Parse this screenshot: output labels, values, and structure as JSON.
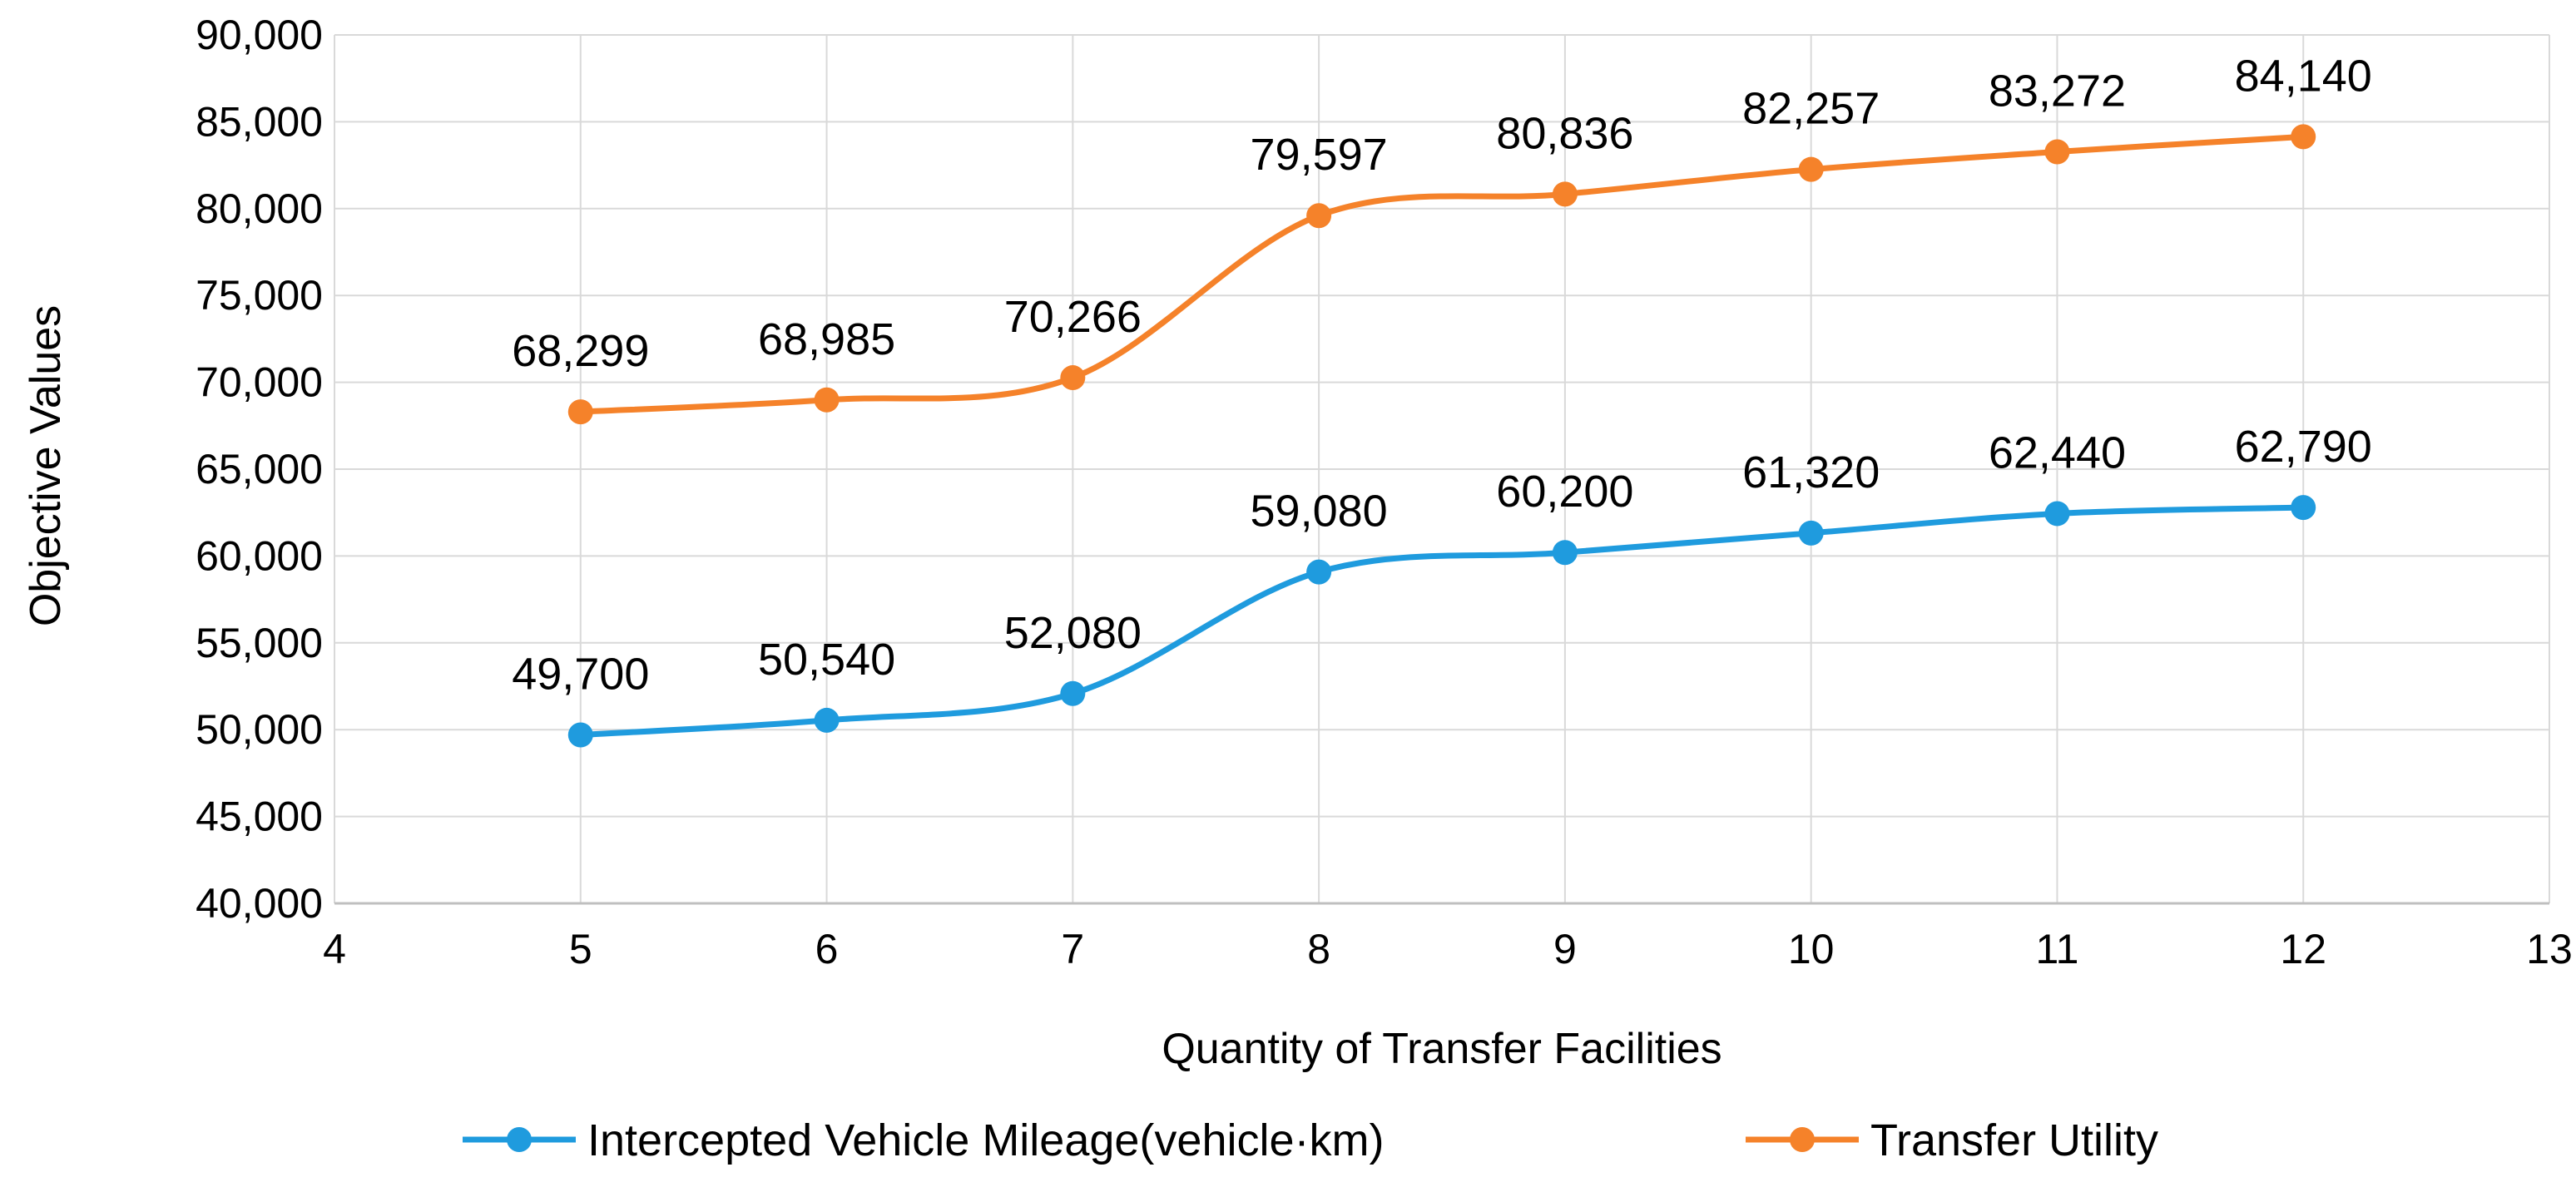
{
  "chart_data": {
    "type": "line",
    "title": "",
    "xlabel": "Quantity of Transfer Facilities",
    "ylabel": "Objective Values",
    "xlim": [
      4,
      13
    ],
    "ylim": [
      40000,
      90000
    ],
    "x_ticks": [
      "4",
      "5",
      "6",
      "7",
      "8",
      "9",
      "10",
      "11",
      "12",
      "13"
    ],
    "y_ticks": [
      "40,000",
      "45,000",
      "50,000",
      "55,000",
      "60,000",
      "65,000",
      "70,000",
      "75,000",
      "80,000",
      "85,000",
      "90,000"
    ],
    "grid": true,
    "smooth": true,
    "legend_position": "bottom",
    "x": [
      5,
      6,
      7,
      8,
      9,
      10,
      11,
      12
    ],
    "series": [
      {
        "name": "Intercepted Vehicle Mileage(vehicle·km)",
        "color": "#1F9BDE",
        "values": [
          49700,
          50540,
          52080,
          59080,
          60200,
          61320,
          62440,
          62790
        ],
        "labels": [
          "49,700",
          "50,540",
          "52,080",
          "59,080",
          "60,200",
          "61,320",
          "62,440",
          "62,790"
        ]
      },
      {
        "name": "Transfer Utility",
        "color": "#F5822A",
        "values": [
          68299,
          68985,
          70266,
          79597,
          80836,
          82257,
          83272,
          84140
        ],
        "labels": [
          "68,299",
          "68,985",
          "70,266",
          "79,597",
          "80,836",
          "82,257",
          "83,272",
          "84,140"
        ]
      }
    ]
  }
}
